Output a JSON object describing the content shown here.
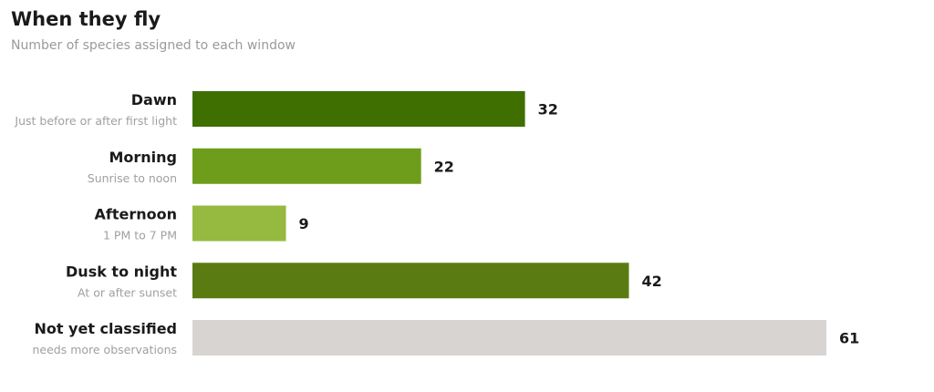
{
  "chart_data": {
    "type": "bar",
    "orientation": "horizontal",
    "title": "When they fly",
    "subtitle": "Number of species assigned to each window",
    "categories": [
      "Dawn",
      "Morning",
      "Afternoon",
      "Dusk to night",
      "Not yet classified"
    ],
    "category_notes": [
      "Just before or after first light",
      "Sunrise to noon",
      "1 PM to 7 PM",
      "At or after sunset",
      "needs more observations"
    ],
    "values": [
      32,
      22,
      9,
      42,
      61
    ],
    "colors": [
      "#3f6f00",
      "#6e9d1c",
      "#96b940",
      "#5a7b12",
      "#d8d4d1"
    ],
    "xlim": [
      0,
      61
    ],
    "grid": false,
    "legend": "none"
  }
}
